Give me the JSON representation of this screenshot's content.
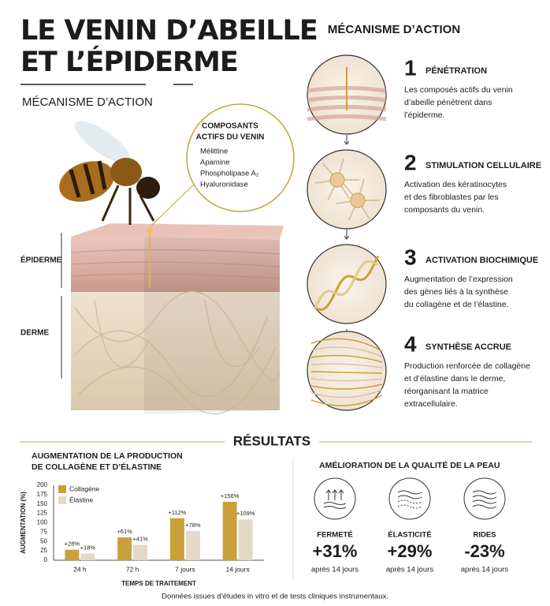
{
  "header": {
    "title_lines": [
      "LE VENIN D’ABEILLE",
      "ET L’ÉPIDERME"
    ],
    "subtitle": "MÉCANISME D’ACTION"
  },
  "illustration": {
    "callout_title": [
      "COMPOSANTS",
      "ACTIFS DU VENIN"
    ],
    "components": [
      "Mélittine",
      "Apamine",
      "Phospholipase A₂",
      "Hyaluronidase"
    ],
    "layer_labels": [
      "ÉPIDERME",
      "DERME"
    ]
  },
  "mechanism": {
    "title": "MÉCANISME D’ACTION",
    "steps": [
      {
        "number": 1,
        "title": "PÉNÉTRATION",
        "lines": [
          "Les composés actifs du venin",
          "d’abeille pénètrent dans",
          "l’épiderme."
        ]
      },
      {
        "number": 2,
        "title": "STIMULATION CELLULAIRE",
        "lines": [
          "Activation des kératinocytes",
          "et des fibroblastes par les",
          "composants du venin."
        ]
      },
      {
        "number": 3,
        "title": "ACTIVATION BIOCHIMIQUE",
        "lines": [
          "Augmentation de l’expression",
          "des gènes liés à la synthèse",
          "du collagène et de l’élastine."
        ]
      },
      {
        "number": 4,
        "title": "SYNTHÈSE ACCRUE",
        "lines": [
          "Production renforcée de collagène",
          "et d’élastine dans le derme,",
          "réorganisant la matrice",
          "extracellulaire."
        ]
      }
    ]
  },
  "results": {
    "title": "RÉSULTATS",
    "footnote": "Données issues d’études in vitro et de tests cliniques instrumentaux."
  },
  "chart_data": {
    "type": "bar",
    "title": [
      "AUGMENTATION DE LA PRODUCTION",
      "DE COLLAGÈNE ET D’ÉLASTINE"
    ],
    "categories": [
      "24 h",
      "72 h",
      "7 jours",
      "14 jours"
    ],
    "series": [
      {
        "name": "Collagène",
        "color": "#c9a13b",
        "values": [
          28,
          61,
          112,
          156
        ],
        "value_labels": [
          "+28%",
          "+61%",
          "+112%",
          "+156%"
        ]
      },
      {
        "name": "Élastine",
        "color": "#e4d9c6",
        "values": [
          18,
          41,
          78,
          109
        ],
        "value_labels": [
          "+18%",
          "+41%",
          "+78%",
          "+109%"
        ]
      }
    ],
    "ylim": [
      0,
      200
    ],
    "yticks": [
      0,
      25,
      50,
      75,
      100,
      125,
      150,
      175,
      200
    ],
    "grid": false,
    "ylabel": "AUGMENTATION (%)",
    "xlabel": "TEMPS DE TRAITEMENT",
    "legend": "top-left"
  },
  "quality": {
    "title": "AMÉLIORATION DE LA QUALITÉ DE LA PEAU",
    "items": [
      {
        "label": "FERMETÉ",
        "value": "+31%",
        "note": "après 14 jours"
      },
      {
        "label": "ÉLASTICITÉ",
        "value": "+29%",
        "note": "après 14 jours"
      },
      {
        "label": "RIDES",
        "value": "-23%",
        "note": "après 14 jours"
      }
    ]
  }
}
